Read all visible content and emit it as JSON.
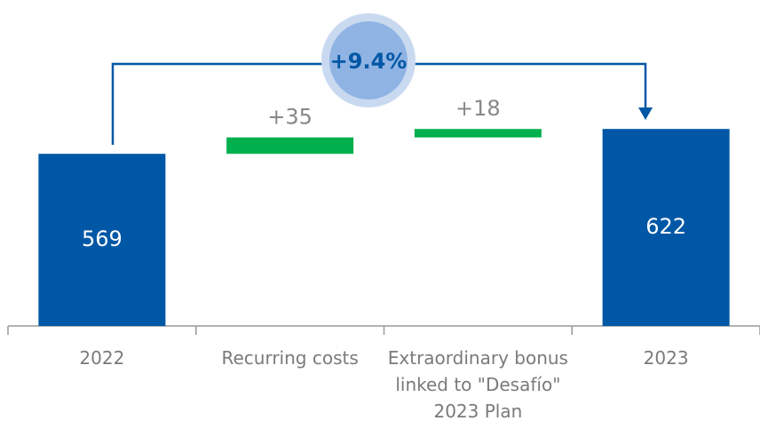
{
  "chart_data": {
    "type": "waterfall",
    "categories": [
      "2022",
      "Recurring costs",
      "Extraordinary bonus linked to \"Desafío\" 2023 Plan",
      "2023"
    ],
    "values": [
      569,
      35,
      18,
      622
    ],
    "value_labels": [
      "569",
      "+35",
      "+18",
      "622"
    ],
    "kinds": [
      "total",
      "delta",
      "delta",
      "total"
    ],
    "colors": [
      "#0057a6",
      "#00b04f",
      "#00b04f",
      "#0057a6"
    ],
    "ylim": [
      202,
      700
    ],
    "annotation": "+9.4%"
  }
}
